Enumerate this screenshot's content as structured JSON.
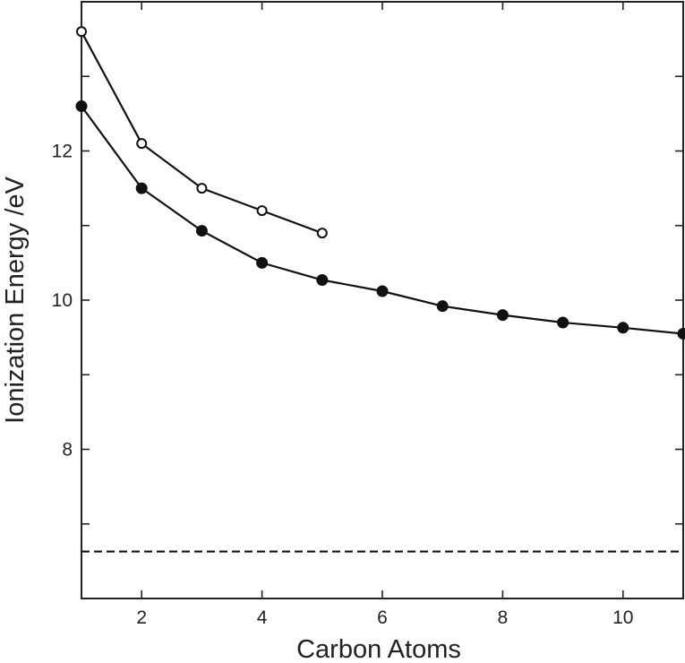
{
  "chart_data": {
    "type": "line",
    "xlabel": "Carbon Atoms",
    "ylabel": "Ionization Energy /eV",
    "xlim": [
      1,
      11
    ],
    "ylim": [
      6,
      14
    ],
    "xticks": [
      2,
      4,
      6,
      8,
      10
    ],
    "yticks": [
      8,
      10,
      12
    ],
    "minor_yticks": [
      7,
      9,
      11,
      13
    ],
    "grid": false,
    "series": [
      {
        "marker": "open-circle",
        "x": [
          1,
          2,
          3,
          4,
          5
        ],
        "y": [
          13.6,
          12.1,
          11.5,
          11.2,
          10.9
        ]
      },
      {
        "marker": "filled-circle",
        "x": [
          1,
          2,
          3,
          4,
          5,
          6,
          7,
          8,
          9,
          10,
          11
        ],
        "y": [
          12.6,
          11.5,
          10.93,
          10.5,
          10.27,
          10.12,
          9.92,
          9.8,
          9.7,
          9.63,
          9.55
        ]
      }
    ],
    "reference_lines": [
      {
        "y": 6.63,
        "style": "dashed"
      }
    ],
    "colors": {
      "line": "#111111",
      "axis": "#222222",
      "background": "#ffffff"
    }
  }
}
